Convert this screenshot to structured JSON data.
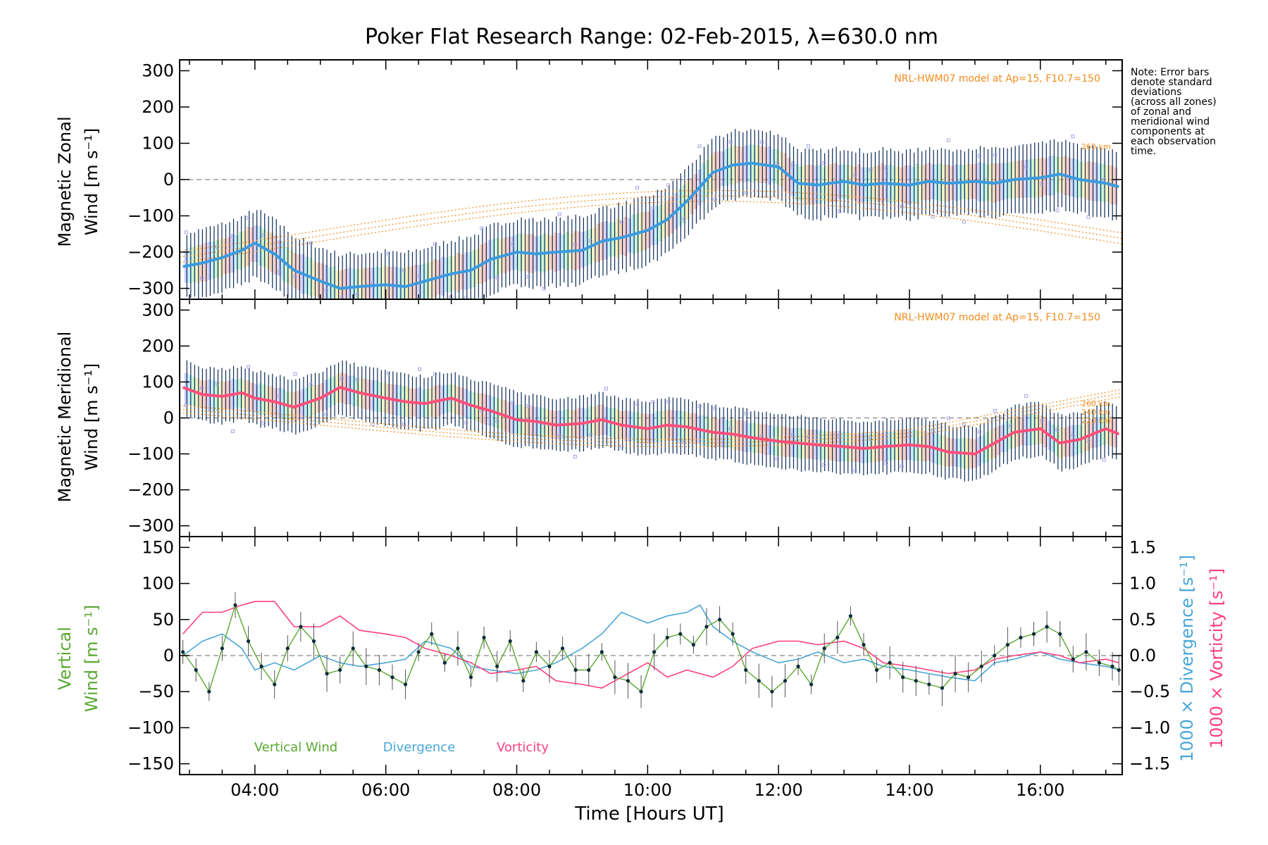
{
  "title": "Poker Flat Research Range: 02-Feb-2015, λ=630.0 nm",
  "note": "Note: Error bars\ndenote standard\ndeviations\n(across all zones)\nof zonal and\nmeridional wind\ncomponents at\neach observation\ntime.",
  "model_label": "NRL-HWM07 model at Ap=15, F10.7=150",
  "colors": {
    "zonal_mean": "#3a9be0",
    "meridional_mean": "#ff4f7b",
    "vertical": "#5aa832",
    "divergence": "#49a6d6",
    "vorticity": "#ff3f7f",
    "model": "#f08c1e",
    "errorbar": "#0a2a55"
  },
  "chart_data": [
    {
      "type": "line",
      "name": "zonal",
      "ylabel_line1": "Magnetic Zonal",
      "ylabel_line2": "Wind",
      "ylabel_unit": "[m s⁻¹]",
      "xlim": [
        2.85,
        17.25
      ],
      "ylim": [
        -330,
        330
      ],
      "yticks": [
        300,
        200,
        100,
        0,
        -100,
        -200,
        -300
      ],
      "ytick_labels": [
        "300",
        "200",
        "100",
        "0",
        "−100",
        "−200",
        "−300"
      ],
      "model_levels": [
        "260 km"
      ],
      "mean_wind": {
        "x": [
          2.9,
          3.2,
          3.5,
          3.8,
          4.0,
          4.3,
          4.6,
          5.0,
          5.3,
          5.6,
          6.0,
          6.3,
          6.6,
          7.0,
          7.3,
          7.6,
          8.0,
          8.3,
          8.6,
          9.0,
          9.3,
          9.6,
          10.0,
          10.3,
          10.6,
          11.0,
          11.3,
          11.6,
          12.0,
          12.3,
          12.6,
          13.0,
          13.3,
          13.6,
          14.0,
          14.3,
          14.6,
          15.0,
          15.3,
          15.6,
          16.0,
          16.3,
          16.6,
          17.0,
          17.2
        ],
        "y": [
          -240,
          -230,
          -215,
          -195,
          -175,
          -205,
          -250,
          -280,
          -300,
          -295,
          -290,
          -295,
          -280,
          -260,
          -250,
          -220,
          -200,
          -205,
          -200,
          -195,
          -170,
          -160,
          -140,
          -110,
          -60,
          20,
          40,
          45,
          35,
          -10,
          -15,
          -5,
          -15,
          -10,
          -15,
          -5,
          -10,
          -5,
          -10,
          0,
          5,
          15,
          0,
          -10,
          -20
        ]
      },
      "spread": [
        85,
        100
      ],
      "samples": 240
    },
    {
      "type": "line",
      "name": "meridional",
      "ylabel_line1": "Magnetic Meridional",
      "ylabel_line2": "Wind",
      "ylabel_unit": "[m s⁻¹]",
      "xlim": [
        2.85,
        17.25
      ],
      "ylim": [
        -330,
        330
      ],
      "yticks": [
        300,
        200,
        100,
        0,
        -100,
        -200,
        -300
      ],
      "ytick_labels": [
        "300",
        "200",
        "100",
        "0",
        "−100",
        "−200",
        "−300"
      ],
      "model_levels": [
        "260 km",
        "240 km",
        "220 km"
      ],
      "mean_wind": {
        "x": [
          2.9,
          3.2,
          3.5,
          3.8,
          4.0,
          4.3,
          4.6,
          5.0,
          5.3,
          5.6,
          6.0,
          6.3,
          6.6,
          7.0,
          7.3,
          7.6,
          8.0,
          8.3,
          8.6,
          9.0,
          9.3,
          9.6,
          10.0,
          10.3,
          10.6,
          11.0,
          11.3,
          11.6,
          12.0,
          12.3,
          12.6,
          13.0,
          13.3,
          13.6,
          14.0,
          14.3,
          14.6,
          15.0,
          15.3,
          15.6,
          16.0,
          16.3,
          16.6,
          17.0,
          17.2
        ],
        "y": [
          85,
          65,
          60,
          70,
          55,
          45,
          30,
          55,
          85,
          70,
          55,
          45,
          40,
          55,
          35,
          20,
          -5,
          -10,
          -20,
          -15,
          -5,
          -20,
          -30,
          -20,
          -25,
          -40,
          -45,
          -55,
          -65,
          -70,
          -75,
          -80,
          -85,
          -80,
          -75,
          -80,
          -95,
          -100,
          -70,
          -40,
          -30,
          -70,
          -60,
          -30,
          -45
        ]
      },
      "spread": [
        70,
        80
      ],
      "samples": 240
    },
    {
      "type": "line",
      "name": "vertical",
      "ylabel_line1": "Vertical",
      "ylabel_line2": "Wind",
      "ylabel_unit": "[m s⁻¹]",
      "right_label_1": "1000 × Divergence",
      "right_label_1_unit": "[s⁻¹]",
      "right_label_2": "1000 × Vorticity",
      "right_label_2_unit": "[s⁻¹]",
      "xlim": [
        2.85,
        17.25
      ],
      "ylim": [
        -165,
        165
      ],
      "yticks": [
        150,
        100,
        50,
        0,
        -50,
        -100,
        -150
      ],
      "ytick_labels": [
        "150",
        "100",
        "50",
        "0",
        "−50",
        "−100",
        "−150"
      ],
      "y2lim": [
        -1.65,
        1.65
      ],
      "y2ticks": [
        1.5,
        1.0,
        0.5,
        0.0,
        -0.5,
        -1.0,
        -1.5
      ],
      "y2tick_labels": [
        "1.5",
        "1.0",
        "0.5",
        "0.0",
        "−0.5",
        "−1.0",
        "−1.5"
      ],
      "legend": [
        "Vertical Wind",
        "Divergence",
        "Vorticity"
      ],
      "series": [
        {
          "name": "Vertical Wind",
          "x": [
            2.9,
            3.1,
            3.3,
            3.5,
            3.7,
            3.9,
            4.1,
            4.3,
            4.5,
            4.7,
            4.9,
            5.1,
            5.3,
            5.5,
            5.7,
            5.9,
            6.1,
            6.3,
            6.5,
            6.7,
            6.9,
            7.1,
            7.3,
            7.5,
            7.7,
            7.9,
            8.1,
            8.3,
            8.5,
            8.7,
            8.9,
            9.1,
            9.3,
            9.5,
            9.7,
            9.9,
            10.1,
            10.3,
            10.5,
            10.7,
            10.9,
            11.1,
            11.3,
            11.5,
            11.7,
            11.9,
            12.1,
            12.3,
            12.5,
            12.7,
            12.9,
            13.1,
            13.3,
            13.5,
            13.7,
            13.9,
            14.1,
            14.3,
            14.5,
            14.7,
            14.9,
            15.1,
            15.3,
            15.5,
            15.7,
            15.9,
            16.1,
            16.3,
            16.5,
            16.7,
            16.9,
            17.1,
            17.2
          ],
          "y": [
            5,
            -20,
            -50,
            10,
            70,
            20,
            -15,
            -40,
            10,
            40,
            20,
            -25,
            -20,
            10,
            -15,
            -20,
            -30,
            -40,
            5,
            30,
            -10,
            10,
            -30,
            25,
            -15,
            20,
            -35,
            5,
            -15,
            10,
            -20,
            -20,
            5,
            -30,
            -35,
            -50,
            5,
            25,
            30,
            15,
            40,
            50,
            30,
            -20,
            -35,
            -50,
            -35,
            -15,
            -40,
            10,
            25,
            55,
            15,
            -20,
            -10,
            -30,
            -35,
            -40,
            -45,
            -25,
            -30,
            -15,
            0,
            15,
            25,
            30,
            40,
            30,
            -5,
            5,
            -10,
            -15,
            -20
          ]
        },
        {
          "name": "Divergence",
          "x": [
            2.9,
            3.2,
            3.5,
            3.8,
            4.0,
            4.3,
            4.6,
            5.0,
            5.3,
            5.6,
            6.0,
            6.3,
            6.6,
            7.0,
            7.3,
            7.6,
            8.0,
            8.3,
            8.6,
            9.0,
            9.3,
            9.6,
            10.0,
            10.3,
            10.6,
            10.8,
            11.0,
            11.3,
            11.6,
            12.0,
            12.3,
            12.6,
            13.0,
            13.3,
            13.6,
            14.0,
            14.3,
            14.6,
            15.0,
            15.3,
            15.6,
            16.0,
            16.3,
            16.6,
            17.0,
            17.2
          ],
          "y": [
            0.0,
            0.2,
            0.3,
            0.1,
            -0.2,
            -0.1,
            -0.2,
            0.0,
            -0.1,
            -0.15,
            -0.1,
            -0.05,
            0.2,
            0.1,
            -0.15,
            -0.2,
            -0.25,
            -0.2,
            -0.1,
            0.1,
            0.3,
            0.6,
            0.45,
            0.55,
            0.6,
            0.7,
            0.4,
            0.2,
            0.05,
            -0.1,
            -0.05,
            0.05,
            -0.1,
            -0.05,
            -0.15,
            -0.2,
            -0.25,
            -0.3,
            -0.35,
            -0.1,
            -0.05,
            0.05,
            -0.05,
            -0.1,
            -0.15,
            -0.2
          ]
        },
        {
          "name": "Vorticity",
          "x": [
            2.9,
            3.2,
            3.5,
            3.8,
            4.0,
            4.3,
            4.6,
            5.0,
            5.3,
            5.6,
            6.0,
            6.3,
            6.6,
            7.0,
            7.3,
            7.6,
            8.0,
            8.3,
            8.6,
            9.0,
            9.3,
            9.6,
            10.0,
            10.3,
            10.6,
            11.0,
            11.3,
            11.6,
            12.0,
            12.3,
            12.6,
            13.0,
            13.3,
            13.6,
            14.0,
            14.3,
            14.6,
            15.0,
            15.3,
            15.6,
            16.0,
            16.3,
            16.6,
            17.0,
            17.2
          ],
          "y": [
            0.3,
            0.6,
            0.6,
            0.7,
            0.75,
            0.75,
            0.4,
            0.4,
            0.55,
            0.35,
            0.3,
            0.25,
            0.1,
            0.0,
            -0.1,
            -0.25,
            -0.2,
            -0.15,
            -0.35,
            -0.4,
            -0.45,
            -0.3,
            -0.1,
            -0.3,
            -0.2,
            -0.3,
            -0.15,
            0.1,
            0.2,
            0.2,
            0.15,
            0.2,
            0.1,
            -0.1,
            -0.15,
            -0.2,
            -0.25,
            -0.2,
            -0.05,
            0.0,
            0.05,
            0.0,
            -0.1,
            -0.05,
            -0.1
          ]
        }
      ]
    }
  ],
  "xaxis": {
    "label": "Time [Hours UT]",
    "ticks": [
      4,
      6,
      8,
      10,
      12,
      14,
      16
    ],
    "tick_labels": [
      "04:00",
      "06:00",
      "08:00",
      "10:00",
      "12:00",
      "14:00",
      "16:00"
    ]
  }
}
